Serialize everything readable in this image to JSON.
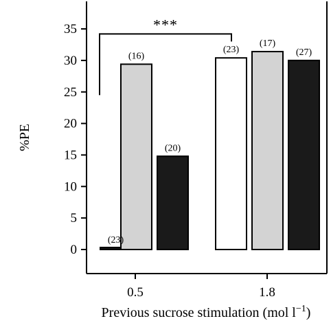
{
  "chart_data": {
    "type": "bar",
    "title": "",
    "ylabel": "%PE",
    "xlabel": "Previous sucrose stimulation (mol l",
    "xlabel_exponent": "−1",
    "xlabel_close": ")",
    "ylim": [
      -4,
      38
    ],
    "yticks": [
      0,
      5,
      10,
      15,
      20,
      25,
      30,
      35
    ],
    "categories": [
      "0.5",
      "1.8"
    ],
    "bars": [
      {
        "category": "0.5",
        "value": 0.2,
        "n": "(23)",
        "fill": "#1a1a1a"
      },
      {
        "category": "0.5",
        "value": 29.4,
        "n": "(16)",
        "fill": "#d3d3d3"
      },
      {
        "category": "0.5",
        "value": 14.8,
        "n": "(20)",
        "fill": "#1a1a1a"
      },
      {
        "category": "1.8",
        "value": 30.4,
        "n": "(23)",
        "fill": "#ffffff"
      },
      {
        "category": "1.8",
        "value": 31.4,
        "n": "(17)",
        "fill": "#d3d3d3"
      },
      {
        "category": "1.8",
        "value": 30.0,
        "n": "(27)",
        "fill": "#1a1a1a"
      }
    ],
    "significance": {
      "label": "***",
      "from_bar": 0,
      "to_bar": 3,
      "bracket_y": 34.2,
      "left_drop_to": 24.5,
      "right_drop_to": 33.0
    },
    "grid": false
  }
}
